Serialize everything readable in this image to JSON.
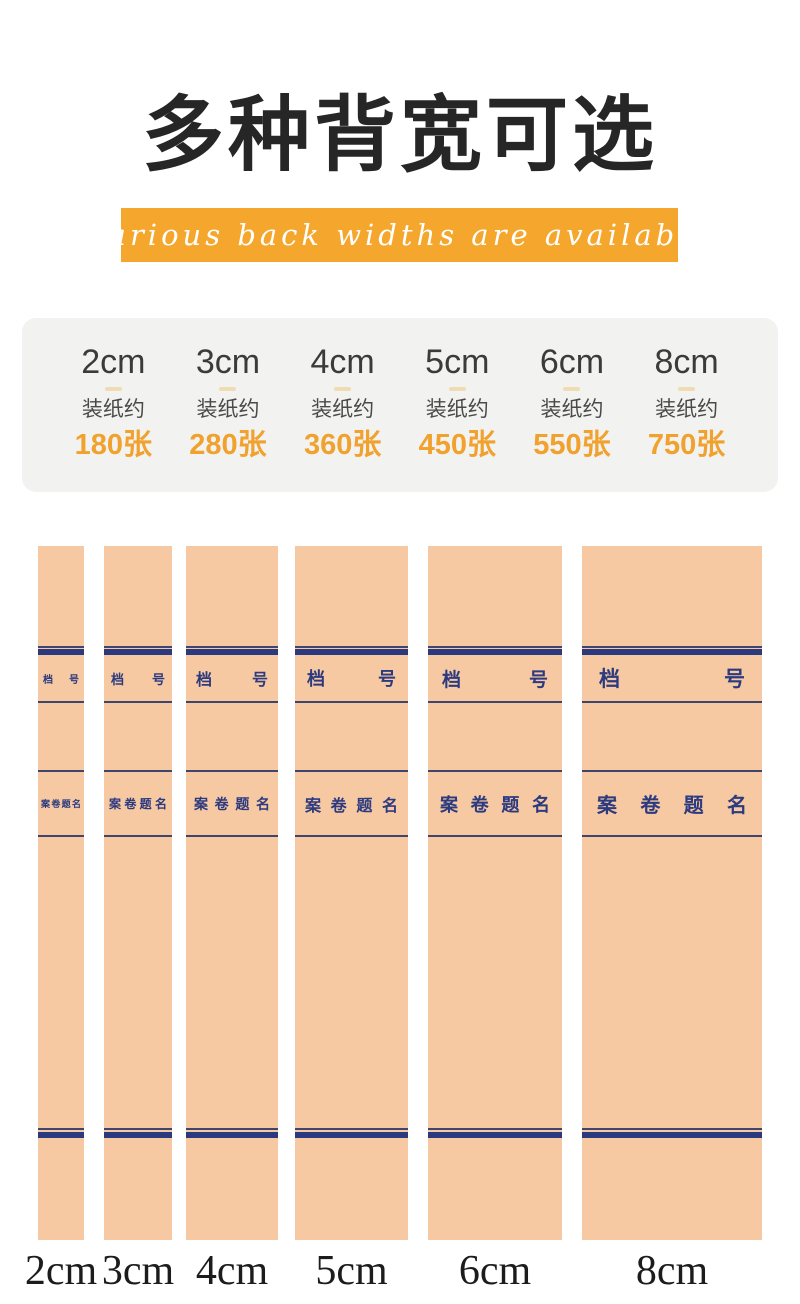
{
  "header": {
    "title": "多种背宽可选",
    "subtitle": "Various back widths are available"
  },
  "spec_card": {
    "capacity_prefix": "装纸约",
    "columns": [
      {
        "size": "2cm",
        "capacity": "180张"
      },
      {
        "size": "3cm",
        "capacity": "280张"
      },
      {
        "size": "4cm",
        "capacity": "360张"
      },
      {
        "size": "5cm",
        "capacity": "450张"
      },
      {
        "size": "6cm",
        "capacity": "550张"
      },
      {
        "size": "8cm",
        "capacity": "750张"
      }
    ]
  },
  "spines": {
    "file_number_label": [
      "档",
      "号"
    ],
    "case_title_label": [
      "案",
      "卷",
      "题",
      "名"
    ],
    "sizes": [
      "2cm",
      "3cm",
      "4cm",
      "5cm",
      "6cm",
      "8cm"
    ]
  },
  "colors": {
    "banner_orange": "#F4A72C",
    "capacity_orange": "#F1A12D",
    "spine_paper": "#F6C9A2",
    "spine_navy_thick": "#2B3A7E",
    "spine_navy_thin": "#3E466E",
    "spine_text_navy": "#2C3A7F",
    "card_gray": "#F2F2F1",
    "title_black": "#262626"
  }
}
